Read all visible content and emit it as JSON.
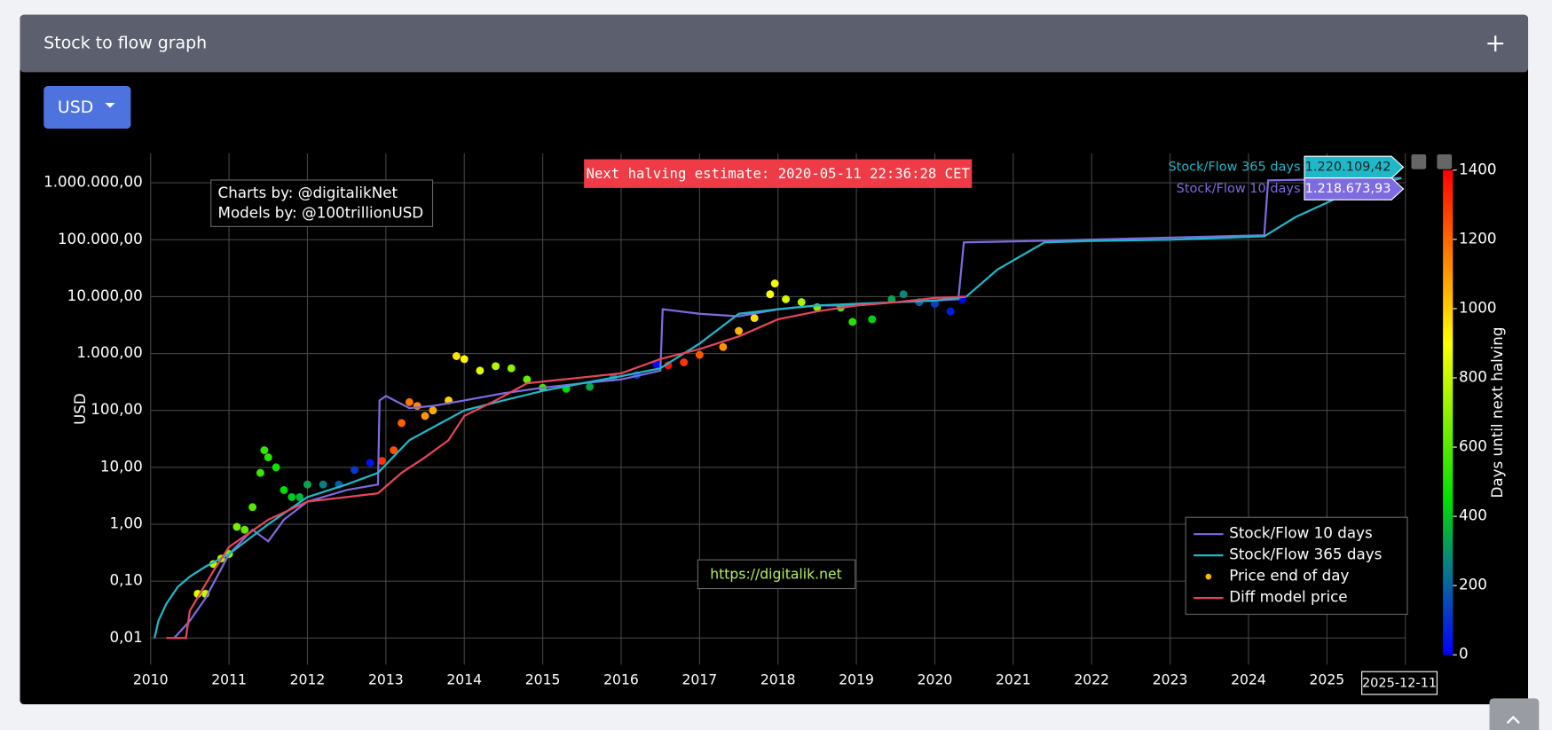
{
  "header": {
    "title": "Stock to flow graph"
  },
  "controls": {
    "currency": "USD"
  },
  "chart_data": {
    "type": "line",
    "ylabel": "USD",
    "log_y": true,
    "grid": true,
    "xlim": [
      2010,
      2026
    ],
    "xticks": [
      2010,
      2011,
      2012,
      2013,
      2014,
      2015,
      2016,
      2017,
      2018,
      2019,
      2020,
      2021,
      2022,
      2023,
      2024,
      2025
    ],
    "ylim": [
      0.0034,
      3300000
    ],
    "yticks": [
      {
        "value": 0.01,
        "label": "0,01"
      },
      {
        "value": 0.1,
        "label": "0,10"
      },
      {
        "value": 1,
        "label": "1,00"
      },
      {
        "value": 10,
        "label": "10,00"
      },
      {
        "value": 100,
        "label": "100,00"
      },
      {
        "value": 1000,
        "label": "1.000,00"
      },
      {
        "value": 10000,
        "label": "10.000,00"
      },
      {
        "value": 100000,
        "label": "100.000,00"
      },
      {
        "value": 1000000,
        "label": "1.000.000,00"
      }
    ],
    "annotations": [
      "Next halving estimate: 2020-05-11 22:36:28 CET",
      "Charts by: @digitalikNet",
      "Models by: @100trillionUSD",
      "https://digitalik.net"
    ],
    "hover_x": "2025-12-11",
    "legend": "bottom-right",
    "colorbar": {
      "title": "Days until next halving",
      "clim": [
        0,
        1400
      ],
      "ticks": [
        0,
        200,
        400,
        600,
        800,
        1000,
        1200,
        1400
      ],
      "colorscale": [
        [
          0,
          "#0000ff"
        ],
        [
          250,
          "#0a7a8a"
        ],
        [
          450,
          "#00e000"
        ],
        [
          900,
          "#ffff00"
        ],
        [
          1150,
          "#ff8000"
        ],
        [
          1400,
          "#ff0000"
        ]
      ]
    },
    "series": [
      {
        "name": "Stock/Flow 10 days",
        "color": "#7d6be0",
        "mode": "lines",
        "hover_label": "1.218.673,93",
        "x": [
          2010.3,
          2010.5,
          2010.7,
          2011.0,
          2011.3,
          2011.5,
          2011.7,
          2012.0,
          2012.5,
          2012.9,
          2012.92,
          2013.0,
          2013.3,
          2013.6,
          2014.0,
          2014.5,
          2015.0,
          2015.5,
          2016.0,
          2016.5,
          2016.53,
          2017.0,
          2017.5,
          2018.0,
          2018.5,
          2019.0,
          2019.5,
          2020.0,
          2020.3,
          2020.37,
          2021.3,
          2024.2,
          2024.25,
          2025.95
        ],
        "values": [
          0.01,
          0.02,
          0.05,
          0.3,
          0.8,
          0.5,
          1.2,
          2.5,
          4,
          5,
          150,
          180,
          110,
          120,
          150,
          200,
          250,
          300,
          350,
          500,
          6000,
          5000,
          4500,
          6000,
          7000,
          7000,
          8000,
          8500,
          9000,
          90000,
          95000,
          120000,
          1100000,
          1218673.93
        ]
      },
      {
        "name": "Stock/Flow 365 days",
        "color": "#1fb8c9",
        "mode": "lines",
        "hover_label": "1.220.109,42",
        "x": [
          2010.05,
          2010.1,
          2010.2,
          2010.35,
          2010.5,
          2010.7,
          2011.0,
          2011.5,
          2012.0,
          2012.5,
          2012.9,
          2013.3,
          2013.7,
          2014.0,
          2014.5,
          2015.0,
          2015.5,
          2016.0,
          2016.5,
          2017.0,
          2017.5,
          2018.0,
          2018.5,
          2019.0,
          2019.5,
          2020.0,
          2020.4,
          2020.8,
          2021.4,
          2022.0,
          2023.0,
          2024.2,
          2024.6,
          2025.2,
          2025.95
        ],
        "values": [
          0.01,
          0.02,
          0.04,
          0.08,
          0.12,
          0.18,
          0.3,
          1,
          3,
          5,
          8,
          30,
          60,
          100,
          150,
          220,
          300,
          400,
          550,
          1500,
          5000,
          6000,
          7000,
          7500,
          8000,
          8500,
          10000,
          30000,
          90000,
          95000,
          100000,
          115000,
          250000,
          600000,
          1220109.42
        ]
      },
      {
        "name": "Price end of day",
        "color": "#f5b800",
        "mode": "markers",
        "x": [
          2010.6,
          2010.7,
          2010.8,
          2010.9,
          2011.0,
          2011.1,
          2011.2,
          2011.3,
          2011.4,
          2011.45,
          2011.5,
          2011.6,
          2011.7,
          2011.8,
          2011.9,
          2012.0,
          2012.2,
          2012.4,
          2012.6,
          2012.8,
          2012.95,
          2013.1,
          2013.2,
          2013.3,
          2013.4,
          2013.5,
          2013.6,
          2013.8,
          2013.9,
          2014.0,
          2014.2,
          2014.4,
          2014.6,
          2014.8,
          2015.0,
          2015.3,
          2015.6,
          2015.9,
          2016.2,
          2016.45,
          2016.6,
          2016.8,
          2017.0,
          2017.3,
          2017.5,
          2017.7,
          2017.9,
          2017.96,
          2018.1,
          2018.3,
          2018.5,
          2018.8,
          2018.95,
          2019.2,
          2019.45,
          2019.6,
          2019.8,
          2020.0,
          2020.2,
          2020.35
        ],
        "values": [
          0.06,
          0.06,
          0.2,
          0.25,
          0.3,
          0.9,
          0.8,
          2,
          8,
          20,
          15,
          10,
          4,
          3,
          3,
          5,
          5,
          5,
          9,
          12,
          13,
          20,
          60,
          140,
          120,
          80,
          100,
          150,
          900,
          800,
          500,
          600,
          550,
          350,
          250,
          240,
          260,
          380,
          420,
          650,
          620,
          700,
          950,
          1300,
          2500,
          4200,
          11000,
          17000,
          9000,
          8000,
          6500,
          6400,
          3600,
          4000,
          9000,
          11000,
          8000,
          7500,
          5500,
          9000
        ],
        "color_values": [
          843,
          807,
          770,
          734,
          697,
          661,
          624,
          588,
          551,
          533,
          515,
          478,
          442,
          405,
          369,
          332,
          259,
          186,
          113,
          40,
          1307,
          1248,
          1212,
          1175,
          1139,
          1102,
          1066,
          993,
          956,
          920,
          847,
          774,
          701,
          628,
          558,
          449,
          339,
          230,
          120,
          29,
          1372,
          1299,
          1226,
          1117,
          1044,
          971,
          898,
          876,
          825,
          752,
          679,
          569,
          515,
          423,
          332,
          277,
          204,
          131,
          58,
          4
        ]
      },
      {
        "name": "Diff model price",
        "color": "#e8465a",
        "mode": "lines",
        "x": [
          2010.2,
          2010.45,
          2010.5,
          2010.8,
          2011.0,
          2011.5,
          2012.0,
          2012.5,
          2012.9,
          2013.2,
          2013.5,
          2013.8,
          2014.0,
          2014.4,
          2014.8,
          2015.5,
          2016.0,
          2016.5,
          2017.0,
          2017.5,
          2018.0,
          2018.5,
          2019.0,
          2019.5,
          2020.0,
          2020.4
        ],
        "values": [
          0.01,
          0.01,
          0.03,
          0.15,
          0.4,
          1.2,
          2.5,
          3,
          3.5,
          8,
          15,
          30,
          80,
          150,
          300,
          380,
          450,
          800,
          1200,
          2000,
          4000,
          5500,
          7000,
          8000,
          9500,
          10000
        ]
      }
    ]
  }
}
